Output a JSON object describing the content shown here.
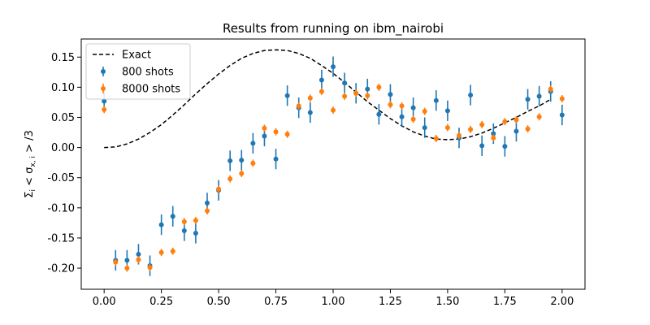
{
  "chart_data": {
    "type": "scatter",
    "title": "Results from running on ibm_nairobi",
    "xlabel": "",
    "ylabel": "Σᵢ < σ_{x,i} > /3",
    "xlim": [
      -0.1,
      2.1
    ],
    "ylim": [
      -0.235,
      0.18
    ],
    "x_ticks": [
      "0.00",
      "0.25",
      "0.50",
      "0.75",
      "1.00",
      "1.25",
      "1.50",
      "1.75",
      "2.00"
    ],
    "y_ticks": [
      "-0.20",
      "-0.15",
      "-0.10",
      "-0.05",
      "0.00",
      "0.05",
      "0.10",
      "0.15"
    ],
    "legend_position": "top-left",
    "grid": false,
    "series": [
      {
        "name": "Exact",
        "kind": "line",
        "style": "dashed",
        "color": "#000000",
        "x": [
          0,
          0.05,
          0.1,
          0.15,
          0.2,
          0.25,
          0.3,
          0.35,
          0.4,
          0.45,
          0.5,
          0.55,
          0.6,
          0.65,
          0.7,
          0.75,
          0.8,
          0.85,
          0.9,
          0.95,
          1.0,
          1.05,
          1.1,
          1.15,
          1.2,
          1.25,
          1.3,
          1.35,
          1.4,
          1.45,
          1.5,
          1.55,
          1.6,
          1.65,
          1.7,
          1.75,
          1.8,
          1.85,
          1.9,
          1.95
        ],
        "y": [
          0.0,
          0.001,
          0.006,
          0.014,
          0.025,
          0.038,
          0.054,
          0.071,
          0.089,
          0.106,
          0.122,
          0.136,
          0.148,
          0.156,
          0.161,
          0.162,
          0.161,
          0.156,
          0.148,
          0.136,
          0.123,
          0.108,
          0.092,
          0.076,
          0.062,
          0.048,
          0.036,
          0.026,
          0.019,
          0.014,
          0.013,
          0.014,
          0.018,
          0.024,
          0.032,
          0.041,
          0.05,
          0.06,
          0.069,
          0.08
        ]
      },
      {
        "name": "800 shots",
        "kind": "errorbar",
        "color": "#1f77b4",
        "x": [
          0.0,
          0.05,
          0.1,
          0.15,
          0.2,
          0.25,
          0.3,
          0.35,
          0.4,
          0.45,
          0.5,
          0.55,
          0.6,
          0.65,
          0.7,
          0.75,
          0.8,
          0.85,
          0.9,
          0.95,
          1.0,
          1.05,
          1.1,
          1.15,
          1.2,
          1.25,
          1.3,
          1.35,
          1.4,
          1.45,
          1.5,
          1.55,
          1.6,
          1.65,
          1.7,
          1.75,
          1.8,
          1.85,
          1.9,
          1.95,
          2.0
        ],
        "y": [
          0.077,
          -0.187,
          -0.187,
          -0.177,
          -0.196,
          -0.128,
          -0.114,
          -0.138,
          -0.142,
          -0.092,
          -0.071,
          -0.022,
          -0.021,
          0.007,
          0.019,
          -0.019,
          0.086,
          0.066,
          0.058,
          0.112,
          0.134,
          0.107,
          0.09,
          0.097,
          0.055,
          0.088,
          0.051,
          0.066,
          0.033,
          0.078,
          0.061,
          0.016,
          0.087,
          0.003,
          0.023,
          0.002,
          0.027,
          0.08,
          0.085,
          0.093,
          0.054
        ],
        "err": [
          0.017,
          0.017,
          0.017,
          0.017,
          0.017,
          0.017,
          0.017,
          0.017,
          0.017,
          0.017,
          0.017,
          0.017,
          0.017,
          0.017,
          0.017,
          0.017,
          0.017,
          0.017,
          0.017,
          0.017,
          0.017,
          0.017,
          0.017,
          0.017,
          0.017,
          0.017,
          0.017,
          0.017,
          0.017,
          0.017,
          0.017,
          0.017,
          0.017,
          0.017,
          0.017,
          0.017,
          0.017,
          0.017,
          0.017,
          0.017,
          0.017
        ]
      },
      {
        "name": "8000 shots",
        "kind": "errorbar",
        "color": "#ff7f0e",
        "x": [
          0.0,
          0.05,
          0.1,
          0.15,
          0.2,
          0.25,
          0.3,
          0.35,
          0.4,
          0.45,
          0.5,
          0.55,
          0.6,
          0.65,
          0.7,
          0.75,
          0.8,
          0.85,
          0.9,
          0.95,
          1.0,
          1.05,
          1.1,
          1.15,
          1.2,
          1.25,
          1.3,
          1.35,
          1.4,
          1.45,
          1.5,
          1.55,
          1.6,
          1.65,
          1.7,
          1.75,
          1.8,
          1.85,
          1.9,
          1.95,
          2.0
        ],
        "y": [
          0.063,
          -0.19,
          -0.2,
          -0.186,
          -0.199,
          -0.174,
          -0.172,
          -0.123,
          -0.121,
          -0.105,
          -0.069,
          -0.052,
          -0.043,
          -0.026,
          0.032,
          0.026,
          0.022,
          0.069,
          0.082,
          0.093,
          0.062,
          0.085,
          0.09,
          0.086,
          0.1,
          0.071,
          0.069,
          0.047,
          0.06,
          0.015,
          0.033,
          0.02,
          0.03,
          0.038,
          0.016,
          0.043,
          0.046,
          0.031,
          0.051,
          0.097,
          0.081
        ],
        "err": [
          0.006,
          0.006,
          0.006,
          0.006,
          0.006,
          0.006,
          0.006,
          0.006,
          0.006,
          0.006,
          0.006,
          0.006,
          0.006,
          0.006,
          0.006,
          0.006,
          0.006,
          0.006,
          0.006,
          0.006,
          0.006,
          0.006,
          0.006,
          0.006,
          0.006,
          0.006,
          0.006,
          0.006,
          0.006,
          0.006,
          0.006,
          0.006,
          0.006,
          0.006,
          0.006,
          0.006,
          0.006,
          0.006,
          0.006,
          0.006,
          0.006
        ]
      }
    ]
  }
}
